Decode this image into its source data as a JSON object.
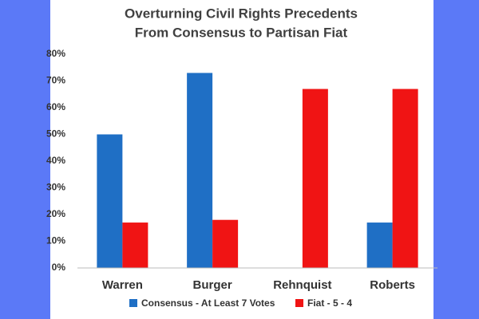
{
  "chart_data": {
    "type": "bar",
    "title": [
      "Overturning Civil Rights Precedents",
      "From Consensus to Partisan Fiat"
    ],
    "categories": [
      "Warren",
      "Burger",
      "Rehnquist",
      "Roberts"
    ],
    "series": [
      {
        "name": "Consensus - At Least 7 Votes",
        "color": "#1f6fc5",
        "values": [
          50,
          73,
          0,
          17
        ]
      },
      {
        "name": "Fiat - 5 - 4",
        "color": "#f01414",
        "values": [
          17,
          18,
          67,
          67
        ]
      }
    ],
    "ylim": [
      0,
      80
    ],
    "yticks": [
      {
        "value": 0,
        "label": "0%"
      },
      {
        "value": 10,
        "label": "10%"
      },
      {
        "value": 20,
        "label": "20%"
      },
      {
        "value": 30,
        "label": "30%"
      },
      {
        "value": 40,
        "label": "40%"
      },
      {
        "value": 50,
        "label": "50%"
      },
      {
        "value": 60,
        "label": "60%"
      },
      {
        "value": 70,
        "label": "70%"
      },
      {
        "value": 80,
        "label": "80%"
      }
    ],
    "grid": false,
    "legend": "bottom"
  }
}
